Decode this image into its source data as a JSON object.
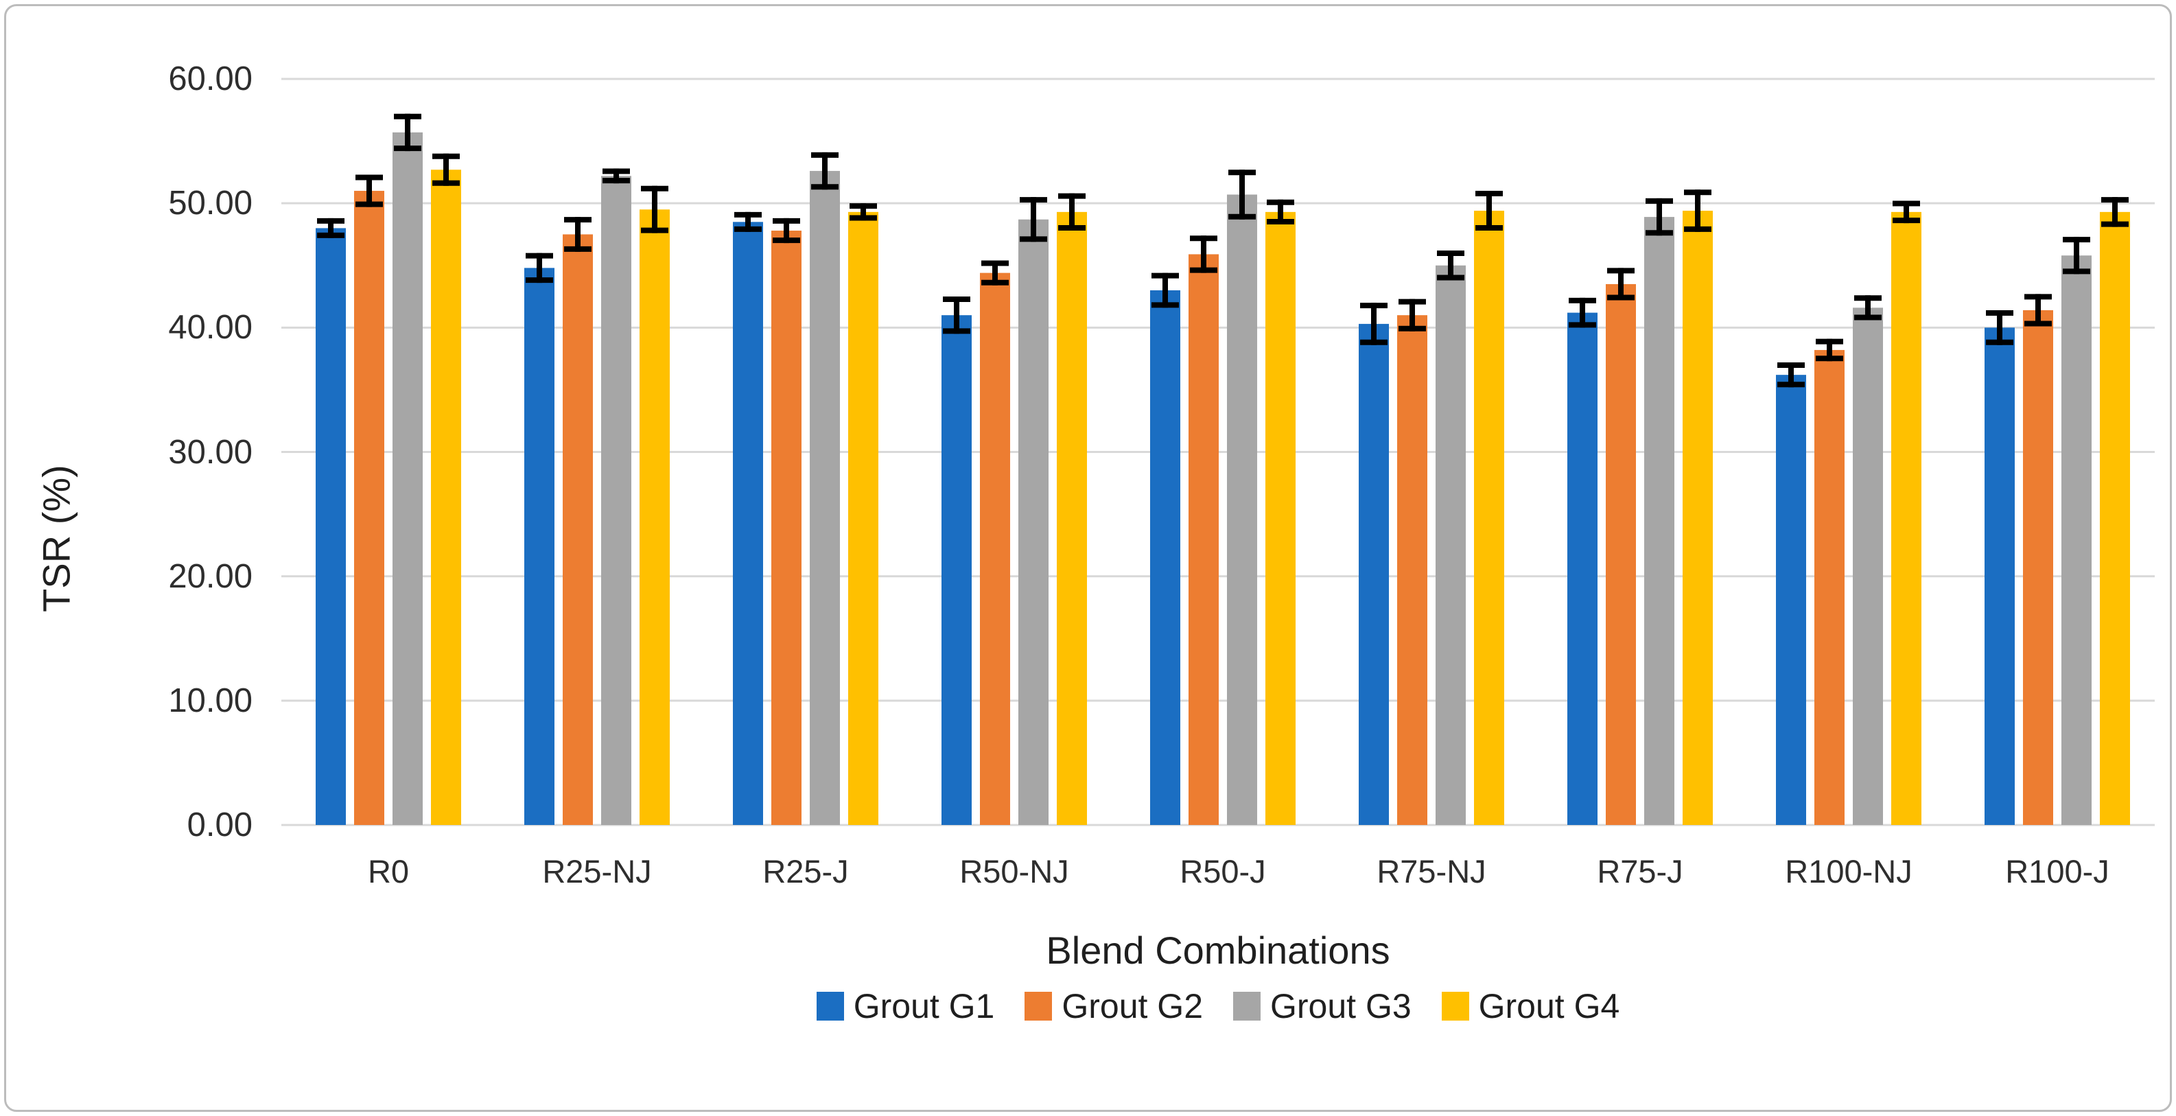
{
  "figure": {
    "background": "#FFFFFF",
    "border_color": "#BCBCBC"
  },
  "chart_data": {
    "type": "bar",
    "title": "",
    "xlabel": "Blend Combinations",
    "ylabel": "TSR (%)",
    "categories": [
      "R0",
      "R25-NJ",
      "R25-J",
      "R50-NJ",
      "R50-J",
      "R75-NJ",
      "R75-J",
      "R100-NJ",
      "R100-J"
    ],
    "series": [
      {
        "name": "Grout G1",
        "color": "#1B6EC2",
        "values": [
          48.0,
          44.8,
          48.5,
          41.0,
          43.0,
          40.3,
          41.2,
          36.2,
          40.0
        ],
        "errors": [
          0.8,
          1.2,
          0.8,
          1.5,
          1.4,
          1.7,
          1.2,
          1.0,
          1.4
        ]
      },
      {
        "name": "Grout G2",
        "color": "#ED7D31",
        "values": [
          51.0,
          47.5,
          47.8,
          44.4,
          45.9,
          41.0,
          43.5,
          38.2,
          41.4
        ],
        "errors": [
          1.3,
          1.4,
          1.0,
          1.0,
          1.5,
          1.3,
          1.3,
          0.9,
          1.3
        ]
      },
      {
        "name": "Grout G3",
        "color": "#A6A6A6",
        "values": [
          55.7,
          52.2,
          52.6,
          48.7,
          50.7,
          45.0,
          48.9,
          41.6,
          45.8
        ],
        "errors": [
          1.5,
          0.6,
          1.5,
          1.8,
          2.0,
          1.2,
          1.5,
          1.0,
          1.5
        ]
      },
      {
        "name": "Grout G4",
        "color": "#FFC000",
        "values": [
          52.7,
          49.5,
          49.3,
          49.3,
          49.3,
          49.4,
          49.4,
          49.3,
          49.3
        ],
        "errors": [
          1.3,
          1.9,
          0.7,
          1.5,
          1.0,
          1.6,
          1.7,
          0.9,
          1.2
        ]
      }
    ],
    "ylim": [
      0,
      60
    ],
    "ytick_step": 10,
    "ytick_labels": [
      "0.00",
      "10.00",
      "20.00",
      "30.00",
      "40.00",
      "50.00",
      "60.00"
    ],
    "grid": true,
    "gridline_color": "#D9D9D9",
    "error_bar_color": "#000000",
    "legend_position": "bottom"
  }
}
